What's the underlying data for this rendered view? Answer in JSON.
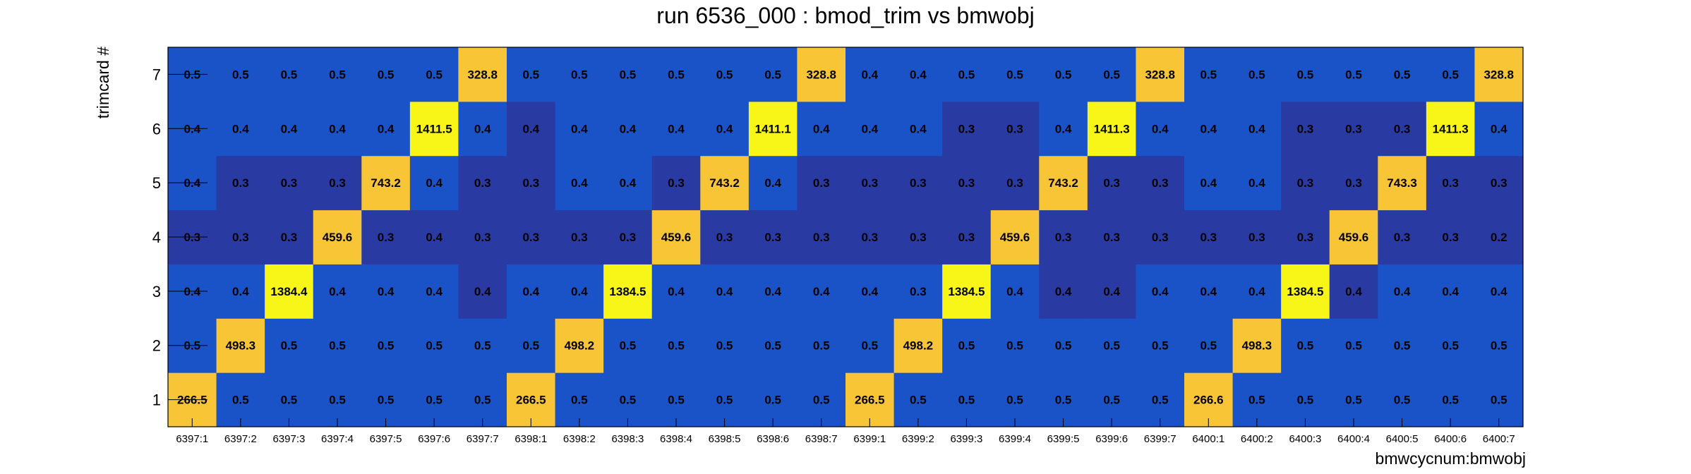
{
  "chart_data": {
    "type": "heatmap",
    "title": "run 6536_000 : bmod_trim vs bmwobj",
    "xlabel": "bmwcycnum:bmwobj",
    "ylabel": "trimcard #",
    "x_categories": [
      "6397:1",
      "6397:2",
      "6397:3",
      "6397:4",
      "6397:5",
      "6397:6",
      "6397:7",
      "6398:1",
      "6398:2",
      "6398:3",
      "6398:4",
      "6398:5",
      "6398:6",
      "6398:7",
      "6399:1",
      "6399:2",
      "6399:3",
      "6399:4",
      "6399:5",
      "6399:6",
      "6399:7",
      "6400:1",
      "6400:2",
      "6400:3",
      "6400:4",
      "6400:5",
      "6400:6",
      "6400:7"
    ],
    "y_categories": [
      "1",
      "2",
      "3",
      "4",
      "5",
      "6",
      "7"
    ],
    "values": [
      [
        "266.5",
        "0.5",
        "0.5",
        "0.5",
        "0.5",
        "0.5",
        "0.5",
        "266.5",
        "0.5",
        "0.5",
        "0.5",
        "0.5",
        "0.5",
        "0.5",
        "266.5",
        "0.5",
        "0.5",
        "0.5",
        "0.5",
        "0.5",
        "0.5",
        "266.6",
        "0.5",
        "0.5",
        "0.5",
        "0.5",
        "0.5",
        "0.5"
      ],
      [
        "0.5",
        "498.3",
        "0.5",
        "0.5",
        "0.5",
        "0.5",
        "0.5",
        "0.5",
        "498.2",
        "0.5",
        "0.5",
        "0.5",
        "0.5",
        "0.5",
        "0.5",
        "498.2",
        "0.5",
        "0.5",
        "0.5",
        "0.5",
        "0.5",
        "0.5",
        "498.3",
        "0.5",
        "0.5",
        "0.5",
        "0.5",
        "0.5"
      ],
      [
        "0.4",
        "0.4",
        "1384.4",
        "0.4",
        "0.4",
        "0.4",
        "0.4",
        "0.4",
        "0.4",
        "1384.5",
        "0.4",
        "0.4",
        "0.4",
        "0.4",
        "0.4",
        "0.3",
        "1384.5",
        "0.4",
        "0.4",
        "0.4",
        "0.4",
        "0.4",
        "0.4",
        "1384.5",
        "0.4",
        "0.4",
        "0.4",
        "0.4"
      ],
      [
        "0.3",
        "0.3",
        "0.3",
        "459.6",
        "0.3",
        "0.4",
        "0.3",
        "0.3",
        "0.3",
        "0.3",
        "459.6",
        "0.3",
        "0.3",
        "0.3",
        "0.3",
        "0.3",
        "0.3",
        "459.6",
        "0.3",
        "0.3",
        "0.3",
        "0.3",
        "0.3",
        "0.3",
        "459.6",
        "0.3",
        "0.3",
        "0.2"
      ],
      [
        "0.4",
        "0.3",
        "0.3",
        "0.3",
        "743.2",
        "0.4",
        "0.3",
        "0.3",
        "0.4",
        "0.4",
        "0.3",
        "743.2",
        "0.4",
        "0.3",
        "0.3",
        "0.3",
        "0.3",
        "0.3",
        "743.2",
        "0.3",
        "0.3",
        "0.4",
        "0.4",
        "0.3",
        "0.3",
        "743.3",
        "0.3",
        "0.3"
      ],
      [
        "0.4",
        "0.4",
        "0.4",
        "0.4",
        "0.4",
        "1411.5",
        "0.4",
        "0.4",
        "0.4",
        "0.4",
        "0.4",
        "0.4",
        "1411.1",
        "0.4",
        "0.4",
        "0.4",
        "0.3",
        "0.3",
        "0.4",
        "1411.3",
        "0.4",
        "0.4",
        "0.4",
        "0.3",
        "0.3",
        "0.3",
        "1411.3",
        "0.4"
      ],
      [
        "0.5",
        "0.5",
        "0.5",
        "0.5",
        "0.5",
        "0.5",
        "328.8",
        "0.5",
        "0.5",
        "0.5",
        "0.5",
        "0.5",
        "0.5",
        "328.8",
        "0.4",
        "0.4",
        "0.5",
        "0.5",
        "0.5",
        "0.5",
        "328.8",
        "0.5",
        "0.5",
        "0.5",
        "0.5",
        "0.5",
        "0.5",
        "328.8"
      ]
    ],
    "shade": [
      [
        3,
        1,
        1,
        1,
        1,
        1,
        1,
        3,
        1,
        1,
        1,
        1,
        1,
        1,
        3,
        1,
        1,
        1,
        1,
        1,
        1,
        3,
        1,
        1,
        1,
        1,
        1,
        1
      ],
      [
        1,
        3,
        1,
        1,
        1,
        1,
        1,
        1,
        3,
        1,
        1,
        1,
        1,
        1,
        1,
        3,
        1,
        1,
        1,
        1,
        1,
        1,
        3,
        1,
        1,
        1,
        1,
        1
      ],
      [
        1,
        1,
        4,
        1,
        1,
        1,
        0,
        1,
        1,
        4,
        1,
        1,
        1,
        1,
        1,
        1,
        4,
        1,
        0,
        0,
        1,
        1,
        1,
        4,
        0,
        1,
        1,
        1
      ],
      [
        0,
        0,
        0,
        3,
        0,
        0,
        0,
        0,
        0,
        0,
        3,
        0,
        0,
        0,
        0,
        0,
        0,
        3,
        0,
        0,
        0,
        0,
        0,
        0,
        3,
        0,
        0,
        0
      ],
      [
        1,
        0,
        0,
        0,
        3,
        1,
        0,
        0,
        1,
        1,
        0,
        3,
        1,
        0,
        0,
        0,
        0,
        0,
        3,
        0,
        0,
        1,
        1,
        0,
        0,
        3,
        0,
        0
      ],
      [
        1,
        1,
        1,
        1,
        1,
        4,
        1,
        0,
        1,
        1,
        1,
        1,
        4,
        1,
        1,
        1,
        0,
        0,
        1,
        4,
        1,
        1,
        1,
        0,
        0,
        0,
        4,
        1
      ],
      [
        1,
        1,
        1,
        1,
        1,
        1,
        3,
        1,
        1,
        1,
        1,
        1,
        1,
        3,
        1,
        1,
        1,
        1,
        1,
        1,
        3,
        1,
        1,
        1,
        1,
        1,
        1,
        3
      ]
    ],
    "palette": [
      "#2a3aa3",
      "#1a52c8",
      "#1a52c8",
      "#f7c535",
      "#f8f618"
    ],
    "grid": false
  }
}
